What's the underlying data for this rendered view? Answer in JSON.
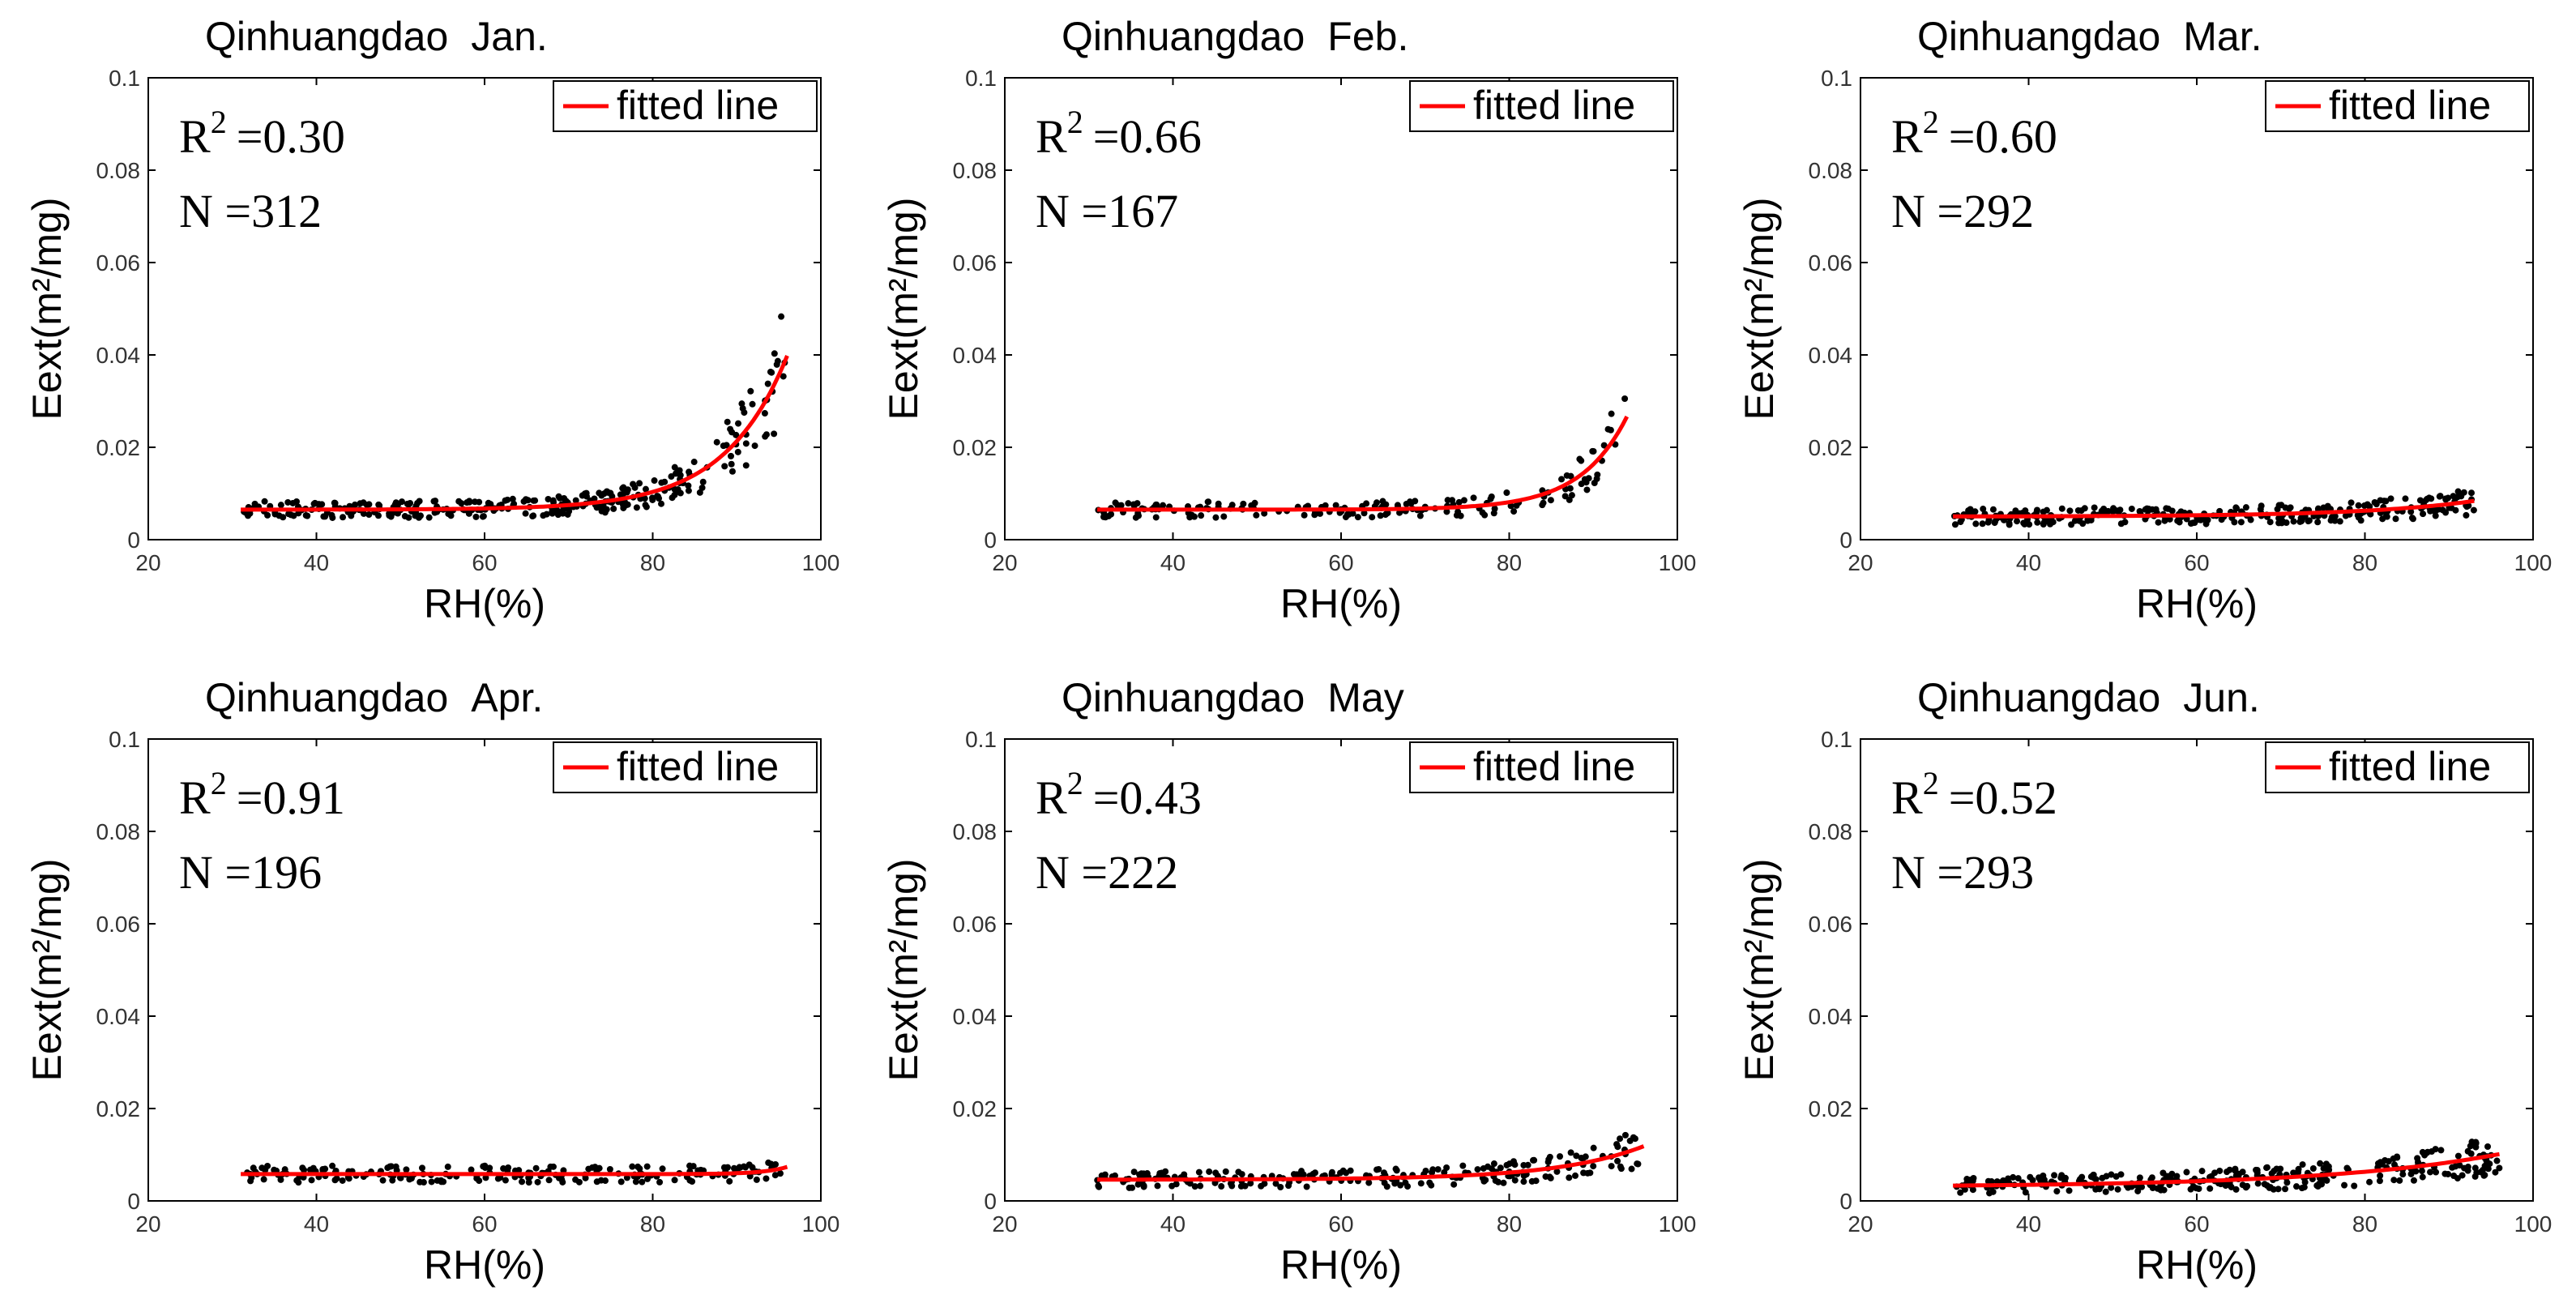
{
  "colors": {
    "fit": "#ff0000",
    "points": "#000000",
    "axes": "#000000"
  },
  "chart_data": [
    {
      "type": "scatter",
      "title_site": "Qinhuangdao",
      "title_month": "Jan.",
      "xlabel": "RH(%)",
      "ylabel": "Eext(m²/mg)",
      "xlim": [
        20,
        100
      ],
      "ylim": [
        0,
        0.1
      ],
      "xticks": [
        "20",
        "40",
        "60",
        "80",
        "100"
      ],
      "yticks": [
        "0",
        "0.02",
        "0.04",
        "0.06",
        "0.08",
        "0.1"
      ],
      "r2_label": "R",
      "r2_sup": "2",
      "r2_value": "=0.30",
      "n_label": "N =312",
      "legend": "fitted line",
      "fit": {
        "a": 0.0065,
        "b": 4.5e-06,
        "c": 0.135
      },
      "x_range": [
        31,
        96
      ],
      "x_max_line": 96
    },
    {
      "type": "scatter",
      "title_site": "Qinhuangdao",
      "title_month": "Feb.",
      "xlabel": "RH(%)",
      "ylabel": "Eext(m²/mg)",
      "xlim": [
        20,
        100
      ],
      "ylim": [
        0,
        0.1
      ],
      "xticks": [
        "20",
        "40",
        "60",
        "80",
        "100"
      ],
      "yticks": [
        "0",
        "0.02",
        "0.04",
        "0.06",
        "0.08",
        "0.1"
      ],
      "r2_label": "R",
      "r2_sup": "2",
      "r2_value": "=0.66",
      "n_label": "N =167",
      "legend": "fitted line",
      "fit": {
        "a": 0.0065,
        "b": 2e-07,
        "c": 0.18
      },
      "x_range": [
        31,
        94
      ],
      "x_max_line": 94
    },
    {
      "type": "scatter",
      "title_site": "Qinhuangdao",
      "title_month": "Mar.",
      "xlabel": "RH(%)",
      "ylabel": "Eext(m²/mg)",
      "xlim": [
        20,
        100
      ],
      "ylim": [
        0,
        0.1
      ],
      "xticks": [
        "20",
        "40",
        "60",
        "80",
        "100"
      ],
      "yticks": [
        "0",
        "0.02",
        "0.04",
        "0.06",
        "0.08",
        "0.1"
      ],
      "r2_label": "R",
      "r2_sup": "2",
      "r2_value": "=0.60",
      "n_label": "N =292",
      "legend": "fitted line",
      "fit": {
        "a": 0.005,
        "b": 3e-05,
        "c": 0.075
      },
      "x_range": [
        31,
        93
      ],
      "x_max_line": 93
    },
    {
      "type": "scatter",
      "title_site": "Qinhuangdao",
      "title_month": "Apr.",
      "xlabel": "RH(%)",
      "ylabel": "Eext(m²/mg)",
      "xlim": [
        20,
        100
      ],
      "ylim": [
        0,
        0.1
      ],
      "xticks": [
        "20",
        "40",
        "60",
        "80",
        "100"
      ],
      "yticks": [
        "0",
        "0.02",
        "0.04",
        "0.06",
        "0.08",
        "0.1"
      ],
      "r2_label": "R",
      "r2_sup": "2",
      "r2_value": "=0.91",
      "n_label": "N =196",
      "legend": "fitted line",
      "fit": {
        "a": 0.0058,
        "b": 2e-13,
        "c": 0.345
      },
      "x_range": [
        31,
        96
      ],
      "x_max_line": 96
    },
    {
      "type": "scatter",
      "title_site": "Qinhuangdao",
      "title_month": "May",
      "xlabel": "RH(%)",
      "ylabel": "Eext(m²/mg)",
      "xlim": [
        20,
        100
      ],
      "ylim": [
        0,
        0.1
      ],
      "xticks": [
        "20",
        "40",
        "60",
        "80",
        "100"
      ],
      "yticks": [
        "0",
        "0.02",
        "0.04",
        "0.06",
        "0.08",
        "0.1"
      ],
      "r2_label": "R",
      "r2_sup": "2",
      "r2_value": "=0.43",
      "n_label": "N =222",
      "legend": "fitted line",
      "fit": {
        "a": 0.0046,
        "b": 1.2e-05,
        "c": 0.097
      },
      "x_range": [
        31,
        96
      ],
      "x_max_line": 96
    },
    {
      "type": "scatter",
      "title_site": "Qinhuangdao",
      "title_month": "Jun.",
      "xlabel": "RH(%)",
      "ylabel": "Eext(m²/mg)",
      "xlim": [
        20,
        100
      ],
      "ylim": [
        0,
        0.1
      ],
      "xticks": [
        "20",
        "40",
        "60",
        "80",
        "100"
      ],
      "yticks": [
        "0",
        "0.02",
        "0.04",
        "0.06",
        "0.08",
        "0.1"
      ],
      "r2_label": "R",
      "r2_sup": "2",
      "r2_value": "=0.52",
      "n_label": "N =293",
      "legend": "fitted line",
      "fit": {
        "a": 0.003,
        "b": 0.0003,
        "c": 0.048
      },
      "x_range": [
        31,
        96
      ],
      "x_max_line": 96
    }
  ]
}
